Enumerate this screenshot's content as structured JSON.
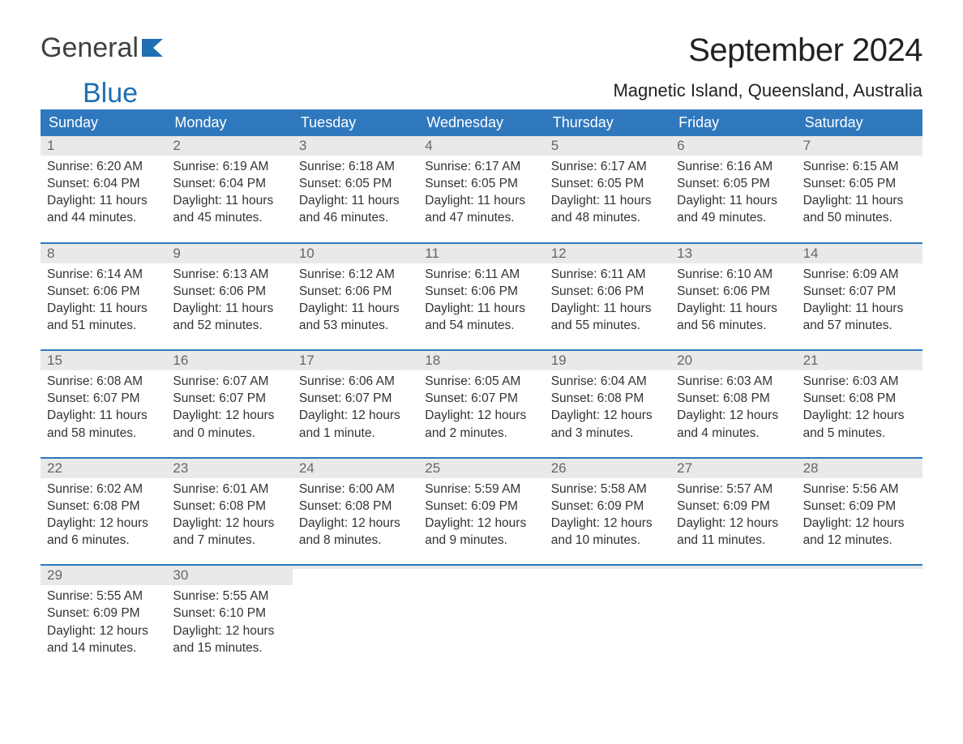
{
  "logo": {
    "text1": "General",
    "text2": "Blue",
    "accent_color": "#1f6fb2"
  },
  "title": "September 2024",
  "location": "Magnetic Island, Queensland, Australia",
  "colors": {
    "header_bg": "#2f78bd",
    "header_text": "#ffffff",
    "daynum_bg": "#e9e9e9",
    "daynum_text": "#666666",
    "body_text": "#333333",
    "week_border": "#2f78bd",
    "page_bg": "#ffffff"
  },
  "typography": {
    "title_fontsize": 40,
    "location_fontsize": 22,
    "dayheader_fontsize": 18,
    "daynum_fontsize": 17,
    "body_fontsize": 15.5
  },
  "day_headers": [
    "Sunday",
    "Monday",
    "Tuesday",
    "Wednesday",
    "Thursday",
    "Friday",
    "Saturday"
  ],
  "weeks": [
    [
      {
        "num": "1",
        "sunrise": "Sunrise: 6:20 AM",
        "sunset": "Sunset: 6:04 PM",
        "day1": "Daylight: 11 hours",
        "day2": "and 44 minutes."
      },
      {
        "num": "2",
        "sunrise": "Sunrise: 6:19 AM",
        "sunset": "Sunset: 6:04 PM",
        "day1": "Daylight: 11 hours",
        "day2": "and 45 minutes."
      },
      {
        "num": "3",
        "sunrise": "Sunrise: 6:18 AM",
        "sunset": "Sunset: 6:05 PM",
        "day1": "Daylight: 11 hours",
        "day2": "and 46 minutes."
      },
      {
        "num": "4",
        "sunrise": "Sunrise: 6:17 AM",
        "sunset": "Sunset: 6:05 PM",
        "day1": "Daylight: 11 hours",
        "day2": "and 47 minutes."
      },
      {
        "num": "5",
        "sunrise": "Sunrise: 6:17 AM",
        "sunset": "Sunset: 6:05 PM",
        "day1": "Daylight: 11 hours",
        "day2": "and 48 minutes."
      },
      {
        "num": "6",
        "sunrise": "Sunrise: 6:16 AM",
        "sunset": "Sunset: 6:05 PM",
        "day1": "Daylight: 11 hours",
        "day2": "and 49 minutes."
      },
      {
        "num": "7",
        "sunrise": "Sunrise: 6:15 AM",
        "sunset": "Sunset: 6:05 PM",
        "day1": "Daylight: 11 hours",
        "day2": "and 50 minutes."
      }
    ],
    [
      {
        "num": "8",
        "sunrise": "Sunrise: 6:14 AM",
        "sunset": "Sunset: 6:06 PM",
        "day1": "Daylight: 11 hours",
        "day2": "and 51 minutes."
      },
      {
        "num": "9",
        "sunrise": "Sunrise: 6:13 AM",
        "sunset": "Sunset: 6:06 PM",
        "day1": "Daylight: 11 hours",
        "day2": "and 52 minutes."
      },
      {
        "num": "10",
        "sunrise": "Sunrise: 6:12 AM",
        "sunset": "Sunset: 6:06 PM",
        "day1": "Daylight: 11 hours",
        "day2": "and 53 minutes."
      },
      {
        "num": "11",
        "sunrise": "Sunrise: 6:11 AM",
        "sunset": "Sunset: 6:06 PM",
        "day1": "Daylight: 11 hours",
        "day2": "and 54 minutes."
      },
      {
        "num": "12",
        "sunrise": "Sunrise: 6:11 AM",
        "sunset": "Sunset: 6:06 PM",
        "day1": "Daylight: 11 hours",
        "day2": "and 55 minutes."
      },
      {
        "num": "13",
        "sunrise": "Sunrise: 6:10 AM",
        "sunset": "Sunset: 6:06 PM",
        "day1": "Daylight: 11 hours",
        "day2": "and 56 minutes."
      },
      {
        "num": "14",
        "sunrise": "Sunrise: 6:09 AM",
        "sunset": "Sunset: 6:07 PM",
        "day1": "Daylight: 11 hours",
        "day2": "and 57 minutes."
      }
    ],
    [
      {
        "num": "15",
        "sunrise": "Sunrise: 6:08 AM",
        "sunset": "Sunset: 6:07 PM",
        "day1": "Daylight: 11 hours",
        "day2": "and 58 minutes."
      },
      {
        "num": "16",
        "sunrise": "Sunrise: 6:07 AM",
        "sunset": "Sunset: 6:07 PM",
        "day1": "Daylight: 12 hours",
        "day2": "and 0 minutes."
      },
      {
        "num": "17",
        "sunrise": "Sunrise: 6:06 AM",
        "sunset": "Sunset: 6:07 PM",
        "day1": "Daylight: 12 hours",
        "day2": "and 1 minute."
      },
      {
        "num": "18",
        "sunrise": "Sunrise: 6:05 AM",
        "sunset": "Sunset: 6:07 PM",
        "day1": "Daylight: 12 hours",
        "day2": "and 2 minutes."
      },
      {
        "num": "19",
        "sunrise": "Sunrise: 6:04 AM",
        "sunset": "Sunset: 6:08 PM",
        "day1": "Daylight: 12 hours",
        "day2": "and 3 minutes."
      },
      {
        "num": "20",
        "sunrise": "Sunrise: 6:03 AM",
        "sunset": "Sunset: 6:08 PM",
        "day1": "Daylight: 12 hours",
        "day2": "and 4 minutes."
      },
      {
        "num": "21",
        "sunrise": "Sunrise: 6:03 AM",
        "sunset": "Sunset: 6:08 PM",
        "day1": "Daylight: 12 hours",
        "day2": "and 5 minutes."
      }
    ],
    [
      {
        "num": "22",
        "sunrise": "Sunrise: 6:02 AM",
        "sunset": "Sunset: 6:08 PM",
        "day1": "Daylight: 12 hours",
        "day2": "and 6 minutes."
      },
      {
        "num": "23",
        "sunrise": "Sunrise: 6:01 AM",
        "sunset": "Sunset: 6:08 PM",
        "day1": "Daylight: 12 hours",
        "day2": "and 7 minutes."
      },
      {
        "num": "24",
        "sunrise": "Sunrise: 6:00 AM",
        "sunset": "Sunset: 6:08 PM",
        "day1": "Daylight: 12 hours",
        "day2": "and 8 minutes."
      },
      {
        "num": "25",
        "sunrise": "Sunrise: 5:59 AM",
        "sunset": "Sunset: 6:09 PM",
        "day1": "Daylight: 12 hours",
        "day2": "and 9 minutes."
      },
      {
        "num": "26",
        "sunrise": "Sunrise: 5:58 AM",
        "sunset": "Sunset: 6:09 PM",
        "day1": "Daylight: 12 hours",
        "day2": "and 10 minutes."
      },
      {
        "num": "27",
        "sunrise": "Sunrise: 5:57 AM",
        "sunset": "Sunset: 6:09 PM",
        "day1": "Daylight: 12 hours",
        "day2": "and 11 minutes."
      },
      {
        "num": "28",
        "sunrise": "Sunrise: 5:56 AM",
        "sunset": "Sunset: 6:09 PM",
        "day1": "Daylight: 12 hours",
        "day2": "and 12 minutes."
      }
    ],
    [
      {
        "num": "29",
        "sunrise": "Sunrise: 5:55 AM",
        "sunset": "Sunset: 6:09 PM",
        "day1": "Daylight: 12 hours",
        "day2": "and 14 minutes."
      },
      {
        "num": "30",
        "sunrise": "Sunrise: 5:55 AM",
        "sunset": "Sunset: 6:10 PM",
        "day1": "Daylight: 12 hours",
        "day2": "and 15 minutes."
      },
      {
        "num": "",
        "sunrise": "",
        "sunset": "",
        "day1": "",
        "day2": ""
      },
      {
        "num": "",
        "sunrise": "",
        "sunset": "",
        "day1": "",
        "day2": ""
      },
      {
        "num": "",
        "sunrise": "",
        "sunset": "",
        "day1": "",
        "day2": ""
      },
      {
        "num": "",
        "sunrise": "",
        "sunset": "",
        "day1": "",
        "day2": ""
      },
      {
        "num": "",
        "sunrise": "",
        "sunset": "",
        "day1": "",
        "day2": ""
      }
    ]
  ]
}
